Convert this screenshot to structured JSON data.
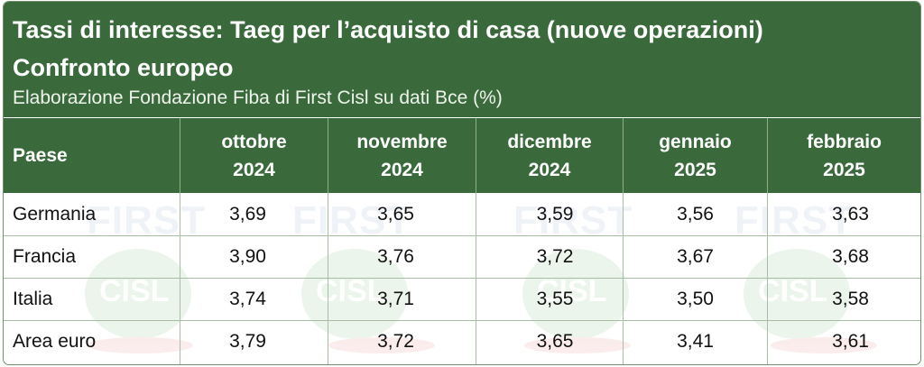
{
  "header": {
    "title_line1": "Tassi di interesse: Taeg per l’acquisto di casa (nuove operazioni)",
    "title_line2": "Confronto europeo",
    "subtitle": "Elaborazione Fondazione Fiba di First Cisl su dati Bce (%)"
  },
  "watermark": {
    "text_top": "FIRST",
    "text_logo": "CISL",
    "colors": {
      "circle": "#2f9a3a",
      "swoosh": "#d83a3a",
      "text": "#5a7fb0"
    }
  },
  "colors": {
    "header_bg": "#3a6a3c",
    "header_text": "#ffffff",
    "row_line": "#a8bca6"
  },
  "chart_data": {
    "type": "table",
    "columns": [
      {
        "line1": "Paese",
        "line2": ""
      },
      {
        "line1": "ottobre",
        "line2": "2024"
      },
      {
        "line1": "novembre",
        "line2": "2024"
      },
      {
        "line1": "dicembre",
        "line2": "2024"
      },
      {
        "line1": "gennaio",
        "line2": "2025"
      },
      {
        "line1": "febbraio",
        "line2": "2025"
      }
    ],
    "rows": [
      {
        "country": "Germania",
        "values": [
          "3,69",
          "3,65",
          "3,59",
          "3,56",
          "3,63"
        ]
      },
      {
        "country": "Francia",
        "values": [
          "3,90",
          "3,76",
          "3,72",
          "3,67",
          "3,68"
        ]
      },
      {
        "country": "Italia",
        "values": [
          "3,74",
          "3,71",
          "3,55",
          "3,50",
          "3,58"
        ]
      },
      {
        "country": "Area euro",
        "values": [
          "3,79",
          "3,72",
          "3,65",
          "3,41",
          "3,61"
        ]
      }
    ]
  }
}
